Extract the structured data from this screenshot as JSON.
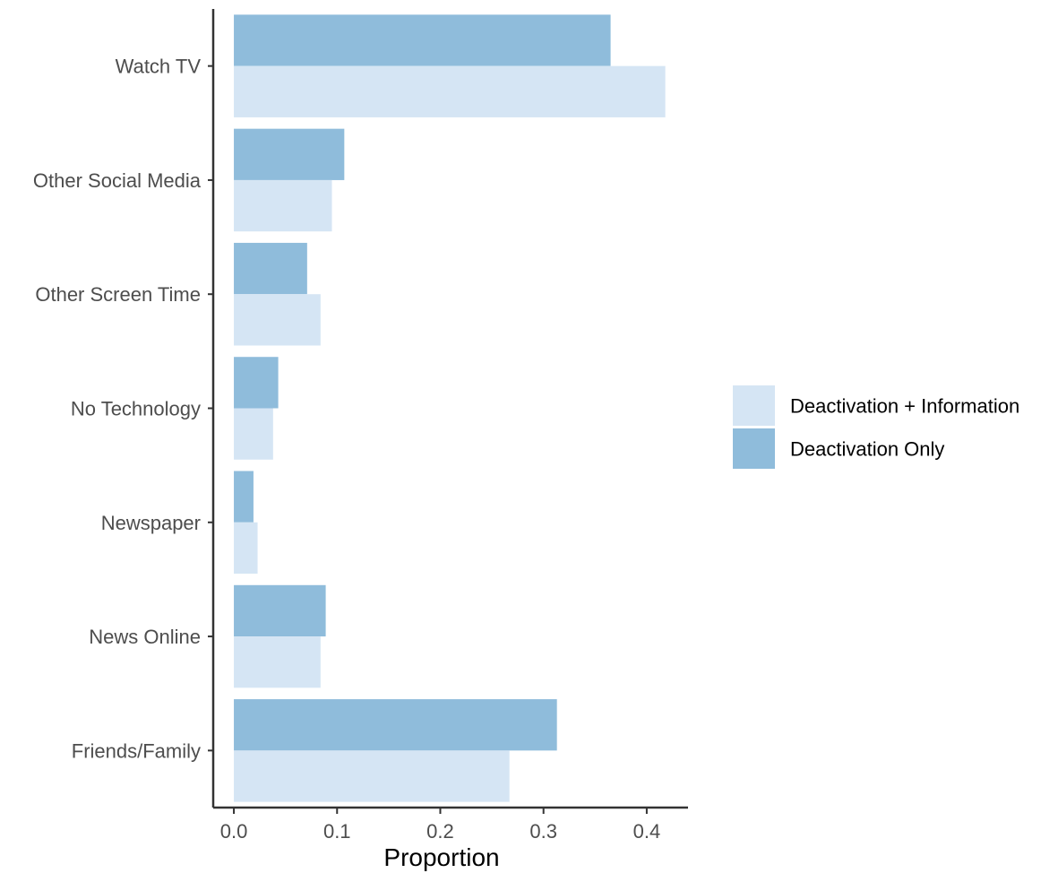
{
  "chart_data": {
    "type": "bar",
    "orientation": "horizontal",
    "categories": [
      "Watch TV",
      "Other Social Media",
      "Other Screen Time",
      "No Technology",
      "Newspaper",
      "News Online",
      "Friends/Family"
    ],
    "series": [
      {
        "name": "Deactivation Only",
        "color": "#8fbcdb",
        "values": [
          0.365,
          0.107,
          0.071,
          0.043,
          0.019,
          0.089,
          0.313
        ]
      },
      {
        "name": "Deactivation + Information",
        "color": "#d5e5f4",
        "values": [
          0.418,
          0.095,
          0.084,
          0.038,
          0.023,
          0.084,
          0.267
        ]
      }
    ],
    "xlabel": "Proportion",
    "ylabel": "",
    "xlim": [
      -0.02,
      0.44
    ],
    "x_ticks": [
      "0.0",
      "0.1",
      "0.2",
      "0.3",
      "0.4"
    ],
    "x_tick_values": [
      0.0,
      0.1,
      0.2,
      0.3,
      0.4
    ],
    "legend_position": "right",
    "legend": [
      "Deactivation + Information",
      "Deactivation Only"
    ],
    "grid": false
  }
}
